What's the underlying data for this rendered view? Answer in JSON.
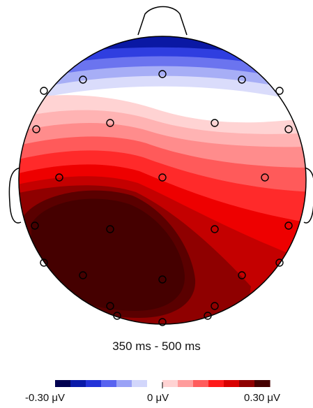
{
  "title": "350 ms - 500 ms",
  "colorbar": {
    "min_label": "-0.30 μV",
    "mid_label": "0 μV",
    "max_label": "0.30 μV",
    "min_value": -0.3,
    "max_value": 0.3,
    "stops": [
      "#000050",
      "#0a1aa8",
      "#2433d8",
      "#5863f0",
      "#9aa2f6",
      "#d2d6fb",
      "#ffffff",
      "#ffd3d3",
      "#ff9c9c",
      "#ff5c5c",
      "#ff1a1a",
      "#d80000",
      "#8f0000",
      "#450000"
    ]
  },
  "colors": {
    "head_outline": "#000000",
    "electrode_outline": "#000000",
    "background": "#ffffff"
  }
}
